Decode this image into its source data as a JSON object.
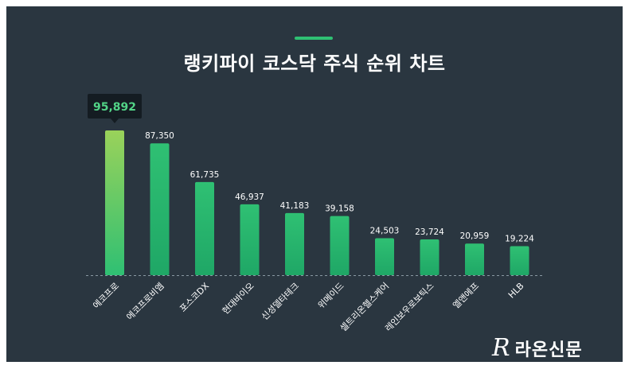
{
  "header": {
    "title": "랭키파이 코스닥 주식 순위 차트"
  },
  "colors": {
    "background": "#2a3640",
    "bar_top": "#2fc073",
    "bar_bottom": "#1fa766",
    "highlight_top": "#9ad25a",
    "accent": "#2fc073"
  },
  "chart_data": {
    "type": "bar",
    "title": "랭키파이 코스닥 주식 순위 차트",
    "categories": [
      "에코프로",
      "에코프로비엠",
      "포스코DX",
      "현대바이오",
      "신성델타테크",
      "위메이드",
      "셀트리온헬스케어",
      "레인보우로보틱스",
      "엘앤에프",
      "HLB"
    ],
    "values": [
      95892,
      87350,
      61735,
      46937,
      41183,
      39158,
      24503,
      23724,
      20959,
      19224
    ],
    "value_labels": [
      "95,892",
      "87,350",
      "61,735",
      "46,937",
      "41,183",
      "39,158",
      "24,503",
      "23,724",
      "20,959",
      "19,224"
    ],
    "highlight_index": 0,
    "ylim": [
      0,
      95892
    ],
    "grid": false,
    "legend": "none"
  },
  "footer": {
    "logo_mark": "R",
    "logo_text": "라온신문"
  }
}
